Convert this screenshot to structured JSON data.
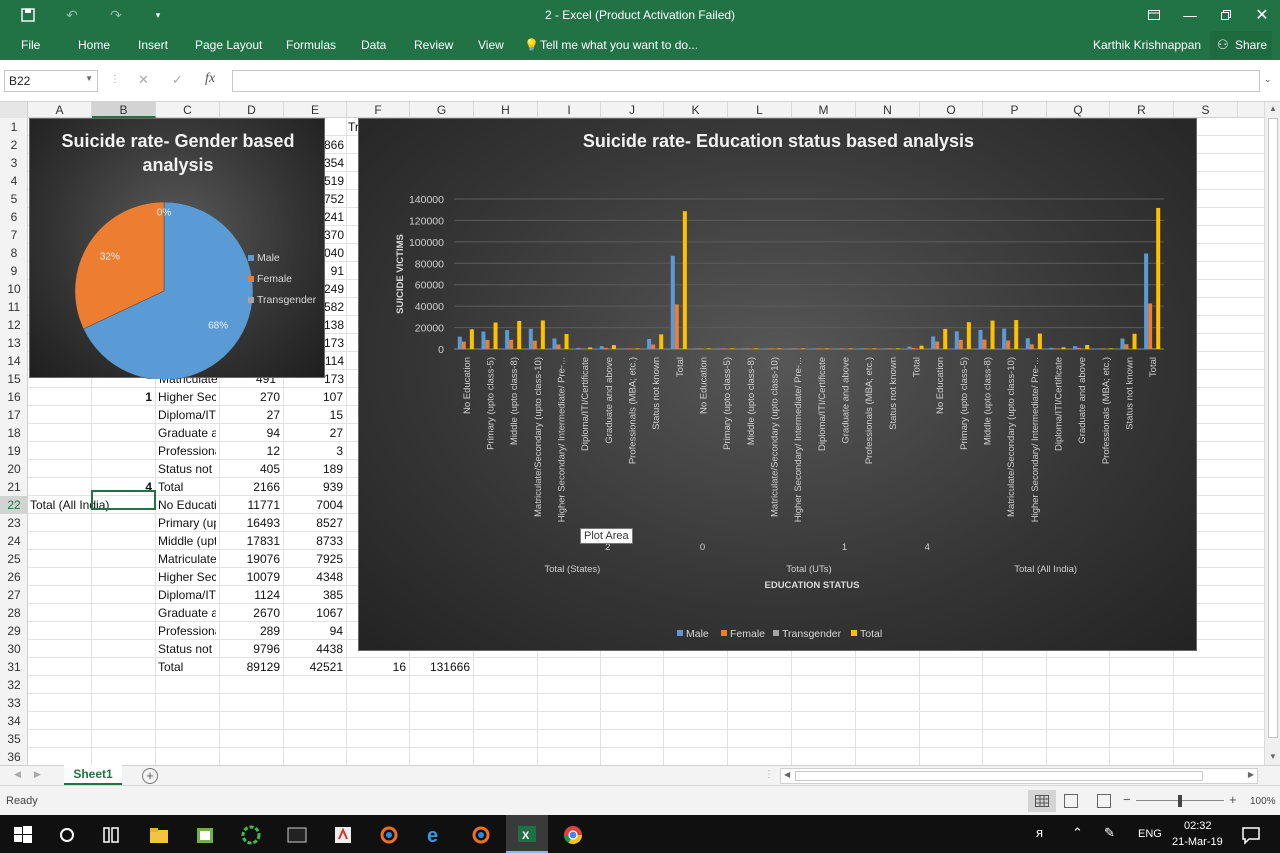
{
  "window": {
    "title": "2 - Excel (Product Activation Failed)",
    "user": "Karthik Krishnappan",
    "share_label": "Share"
  },
  "ribbon": {
    "tabs": [
      "File",
      "Home",
      "Insert",
      "Page Layout",
      "Formulas",
      "Data",
      "Review",
      "View"
    ],
    "tell_me": "Tell me what you want to do..."
  },
  "formula_bar": {
    "name_box": "B22",
    "fx_label": "fx",
    "value": ""
  },
  "columns": [
    "A",
    "B",
    "C",
    "D",
    "E",
    "F",
    "G",
    "H",
    "I",
    "J",
    "K",
    "L",
    "M",
    "N",
    "O",
    "P",
    "Q",
    "R",
    "S"
  ],
  "rows": [
    "1",
    "2",
    "3",
    "4",
    "5",
    "6",
    "7",
    "8",
    "9",
    "10",
    "11",
    "12",
    "13",
    "14",
    "15",
    "16",
    "17",
    "18",
    "19",
    "20",
    "21",
    "22",
    "23",
    "24",
    "25",
    "26",
    "27",
    "28",
    "29",
    "30",
    "31",
    "32",
    "33",
    "34",
    "35",
    "36",
    "37"
  ],
  "cells": {
    "e_fragments": [
      "866",
      "354",
      "519",
      "752",
      "241",
      "370",
      "040",
      "91",
      "249",
      "582",
      "138",
      "173",
      "114",
      "173"
    ],
    "f1": "Tr",
    "c15": "Matriculate",
    "d15": "491",
    "table_rows": [
      {
        "a": "",
        "b": "1",
        "c": "Higher Seco",
        "d": "270",
        "e": "107",
        "f": "",
        "g": ""
      },
      {
        "a": "",
        "b": "",
        "c": "Diploma/IT",
        "d": "27",
        "e": "15",
        "f": "",
        "g": ""
      },
      {
        "a": "",
        "b": "",
        "c": "Graduate a",
        "d": "94",
        "e": "27",
        "f": "",
        "g": ""
      },
      {
        "a": "",
        "b": "",
        "c": "Professiona",
        "d": "12",
        "e": "3",
        "f": "",
        "g": ""
      },
      {
        "a": "",
        "b": "",
        "c": "Status not k",
        "d": "405",
        "e": "189",
        "f": "",
        "g": ""
      },
      {
        "a": "",
        "b": "4",
        "c": "Total",
        "d": "2166",
        "e": "939",
        "f": "",
        "g": ""
      },
      {
        "a": "Total (All India)",
        "b": "",
        "c": "No Educatio",
        "d": "11771",
        "e": "7004",
        "f": "",
        "g": ""
      },
      {
        "a": "",
        "b": "",
        "c": "Primary (up",
        "d": "16493",
        "e": "8527",
        "f": "",
        "g": ""
      },
      {
        "a": "",
        "b": "",
        "c": "Middle (upt",
        "d": "17831",
        "e": "8733",
        "f": "",
        "g": ""
      },
      {
        "a": "",
        "b": "",
        "c": "Matriculate",
        "d": "19076",
        "e": "7925",
        "f": "",
        "g": ""
      },
      {
        "a": "",
        "b": "",
        "c": "Higher Seco",
        "d": "10079",
        "e": "4348",
        "f": "",
        "g": ""
      },
      {
        "a": "",
        "b": "",
        "c": "Diploma/IT",
        "d": "1124",
        "e": "385",
        "f": "",
        "g": ""
      },
      {
        "a": "",
        "b": "",
        "c": "Graduate a",
        "d": "2670",
        "e": "1067",
        "f": "",
        "g": ""
      },
      {
        "a": "",
        "b": "",
        "c": "Professiona",
        "d": "289",
        "e": "94",
        "f": "",
        "g": ""
      },
      {
        "a": "",
        "b": "",
        "c": "Status not l",
        "d": "9796",
        "e": "4438",
        "f": "",
        "g": ""
      },
      {
        "a": "",
        "b": "",
        "c": "Total",
        "d": "89129",
        "e": "42521",
        "f": "16",
        "g": "131666"
      }
    ]
  },
  "sheet_tabs": {
    "active": "Sheet1",
    "add_label": "+"
  },
  "status": {
    "text": "Ready",
    "zoom": "100%"
  },
  "taskbar": {
    "language": "ENG",
    "time": "02:32",
    "date": "21-Mar-19"
  },
  "tooltip": "Plot Area",
  "colors": {
    "excel_green": "#217346",
    "male": "#5b9bd5",
    "female": "#ed7d31",
    "transgender": "#a5a5a5",
    "total": "#ffc000"
  },
  "chart_data": [
    {
      "type": "pie",
      "title": "Suicide rate- Gender based analysis",
      "categories": [
        "Male",
        "Female",
        "Transgender"
      ],
      "values": [
        68,
        32,
        0
      ],
      "data_labels": [
        "68%",
        "32%",
        "0%"
      ],
      "legend": "right"
    },
    {
      "type": "bar",
      "title": "Suicide rate- Education status based analysis",
      "xlabel": "EDUCATION STATUS",
      "ylabel": "SUICIDE VICTIMS",
      "ylim": [
        0,
        140000
      ],
      "yticks": [
        "0",
        "20000",
        "40000",
        "60000",
        "80000",
        "100000",
        "120000",
        "140000"
      ],
      "grid": true,
      "legend": "bottom",
      "groups": [
        {
          "label": "Total (States)",
          "count": 10
        },
        {
          "label": "Total (UTs)",
          "count": 10
        },
        {
          "label": "Total (All India)",
          "count": 10
        }
      ],
      "group_mid_labels": [
        "2",
        "0",
        "1",
        "4"
      ],
      "categories": [
        "No Education",
        "Primary (upto class-5)",
        "Middle (upto class-8)",
        "Matriculate/Secondary (upto class-10)",
        "Higher Secondary/ Intermediate/ Pre-...",
        "Diploma/ITI/Certificate",
        "Graduate and above",
        "Professionals (MBA; etc.)",
        "Status not known",
        "Total",
        "No Education",
        "Primary (upto class-5)",
        "Middle (upto class-8)",
        "Matriculate/Secondary (upto class-10)",
        "Higher Secondary/ Intermediate/ Pre-...",
        "Diploma/ITI/Certificate",
        "Graduate and above",
        "Professionals (MBA; etc.)",
        "Status not known",
        "Total",
        "No Education",
        "Primary (upto class-5)",
        "Middle (upto class-8)",
        "Matriculate/Secondary (upto class-10)",
        "Higher Secondary/ Intermediate/ Pre-...",
        "Diploma/ITI/Certificate",
        "Graduate and above",
        "Professionals (MBA; etc.)",
        "Status not known",
        "Total"
      ],
      "series": [
        {
          "name": "Male",
          "values": [
            11500,
            16300,
            17600,
            18900,
            9800,
            1100,
            2600,
            280,
            9400,
            87000,
            260,
            190,
            230,
            180,
            270,
            25,
            90,
            10,
            400,
            2170,
            11771,
            16493,
            17831,
            19076,
            10079,
            1124,
            2670,
            289,
            9796,
            89129
          ]
        },
        {
          "name": "Female",
          "values": [
            6900,
            8450,
            8600,
            7800,
            4200,
            370,
            1040,
            90,
            4250,
            41600,
            120,
            80,
            130,
            120,
            110,
            15,
            30,
            4,
            190,
            940,
            7004,
            8527,
            8733,
            7925,
            4348,
            385,
            1067,
            94,
            4438,
            42521
          ]
        },
        {
          "name": "Transgender",
          "values": [
            0,
            0,
            0,
            0,
            0,
            0,
            0,
            0,
            0,
            16,
            0,
            0,
            0,
            0,
            0,
            0,
            0,
            0,
            0,
            0,
            0,
            0,
            0,
            0,
            0,
            0,
            0,
            0,
            0,
            16
          ]
        },
        {
          "name": "Total",
          "values": [
            18400,
            24700,
            26200,
            26700,
            14000,
            1470,
            3640,
            370,
            13650,
            128600,
            380,
            270,
            360,
            300,
            380,
            40,
            120,
            14,
            590,
            3110,
            18775,
            25020,
            26564,
            27001,
            14427,
            1509,
            3737,
            383,
            14234,
            131666
          ]
        }
      ]
    }
  ]
}
